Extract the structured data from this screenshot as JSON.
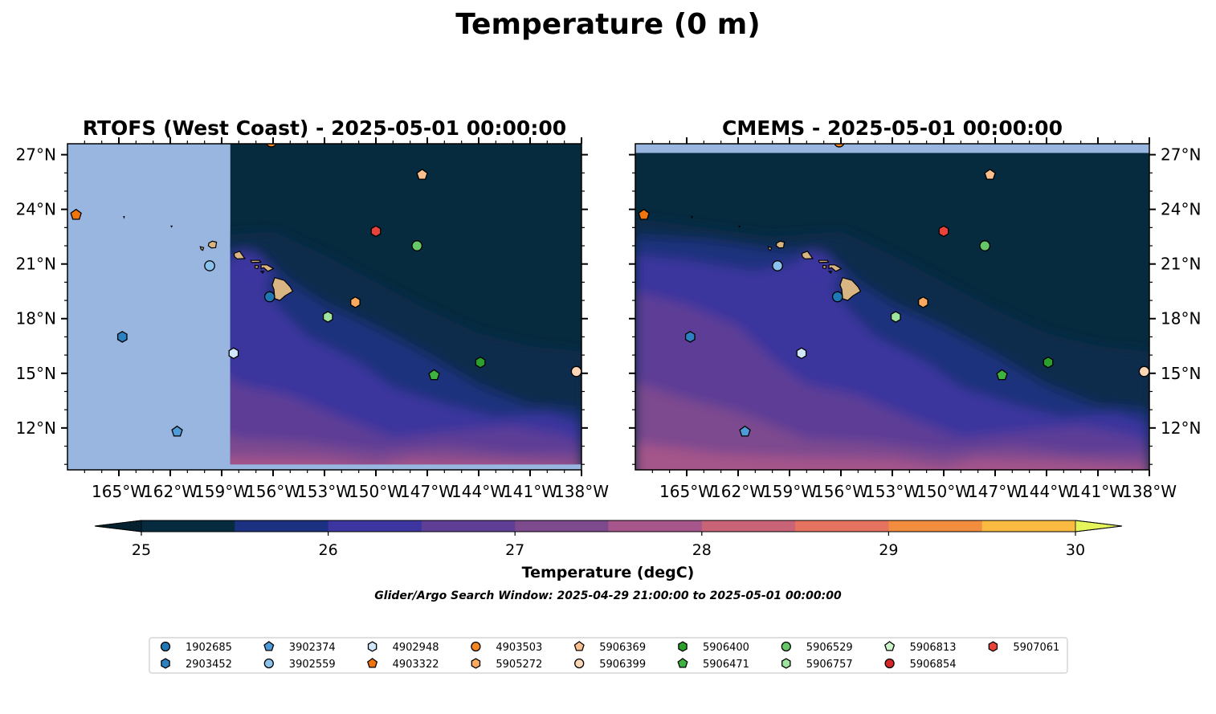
{
  "figure": {
    "title": "Temperature (0 m)",
    "subtitle": "Glider/Argo Search Window: 2025-04-29 21:00:00 to 2025-05-01 00:00:00"
  },
  "map_extent": {
    "lon_min": -168,
    "lon_max": -138,
    "lat_min": 9.7,
    "lat_max": 27.6
  },
  "panels": [
    {
      "id": "rtofs",
      "title": "RTOFS (West Coast) - 2025-05-01 00:00:00",
      "model_lon_min": -158.5,
      "model_lat_min": 10.0,
      "model_lat_max": 27.6,
      "axis_side": "left"
    },
    {
      "id": "cmems",
      "title": "CMEMS - 2025-05-01 00:00:00",
      "model_lon_min": -168,
      "model_lat_min": 9.7,
      "model_lat_max": 27.1,
      "axis_side": "right"
    }
  ],
  "axes": {
    "lon_ticks": [
      -165,
      -162,
      -159,
      -156,
      -153,
      -150,
      -147,
      -144,
      -141,
      -138
    ],
    "lon_tick_labels": [
      "165°W",
      "162°W",
      "159°W",
      "156°W",
      "153°W",
      "150°W",
      "147°W",
      "144°W",
      "141°W",
      "138°W"
    ],
    "lat_ticks": [
      12,
      15,
      18,
      21,
      24,
      27
    ],
    "lat_tick_labels": [
      "12°N",
      "15°N",
      "18°N",
      "21°N",
      "24°N",
      "27°N"
    ]
  },
  "colorbar": {
    "label": "Temperature (degC)",
    "min": 25,
    "max": 30,
    "step": 0.5,
    "tick_values": [
      25,
      26,
      27,
      28,
      29,
      30
    ],
    "tick_labels": [
      "25",
      "26",
      "27",
      "28",
      "29",
      "30"
    ],
    "colors": [
      "#062a3e",
      "#1c3181",
      "#3d36a0",
      "#5f3f96",
      "#7e4a8e",
      "#a6568a",
      "#c96378",
      "#e6735f",
      "#f28c3f",
      "#fbba41",
      "#f7dc41"
    ],
    "under_color": "#05212f",
    "over_color": "#e6f55a"
  },
  "colors": {
    "no_data": "#99b6e1",
    "land": "#d9b584",
    "temp_25": "#062a3e",
    "temp_25_5": "#0a2a4d",
    "temp_26": "#1c3181",
    "temp_26_5": "#3d36a0",
    "temp_27": "#5f3f96",
    "temp_27_5": "#7e4a8e",
    "temp_28": "#a6568a"
  },
  "floats": [
    {
      "id": "1902685",
      "marker": "circle",
      "color": "#1f77b4",
      "lon": -156.2,
      "lat": 19.2
    },
    {
      "id": "2903452",
      "marker": "hexagon",
      "color": "#2e81c0",
      "lon": -164.8,
      "lat": 17.0
    },
    {
      "id": "3902374",
      "marker": "pentagon",
      "color": "#4e9bd7",
      "lon": -161.6,
      "lat": 11.8
    },
    {
      "id": "3902559",
      "marker": "circle",
      "color": "#8cc3ec",
      "lon": -159.7,
      "lat": 20.9
    },
    {
      "id": "4902948",
      "marker": "hexagon",
      "color": "#cfe6fb",
      "lon": -158.3,
      "lat": 16.1
    },
    {
      "id": "4903503",
      "marker": "circle",
      "color": "#f58520",
      "lon": -156.1,
      "lat": 27.7
    },
    {
      "id": "4903322",
      "marker": "pentagon",
      "color": "#f0750e",
      "lon": -167.5,
      "lat": 23.7
    },
    {
      "id": "5905272",
      "marker": "hexagon",
      "color": "#fcaa60",
      "lon": -151.2,
      "lat": 18.9
    },
    {
      "id": "5906369",
      "marker": "pentagon",
      "color": "#fcc08e",
      "lon": -147.3,
      "lat": 25.9
    },
    {
      "id": "5906399",
      "marker": "circle",
      "color": "#fdd7b6",
      "lon": -138.3,
      "lat": 15.1
    },
    {
      "id": "5906400",
      "marker": "hexagon",
      "color": "#2ca02c",
      "lon": -143.9,
      "lat": 15.6
    },
    {
      "id": "5906471",
      "marker": "pentagon",
      "color": "#3fb33f",
      "lon": -146.6,
      "lat": 14.9
    },
    {
      "id": "5906529",
      "marker": "circle",
      "color": "#66c766",
      "lon": -147.6,
      "lat": 22.0
    },
    {
      "id": "5906757",
      "marker": "hexagon",
      "color": "#9ee49e",
      "lon": -152.8,
      "lat": 18.1
    },
    {
      "id": "5906813",
      "marker": "pentagon",
      "color": "#ccf5cc",
      "lon": -152.8,
      "lat": 18.1,
      "hide_in_map": true
    },
    {
      "id": "5906854",
      "marker": "circle",
      "color": "#d62728",
      "lon": -150.0,
      "lat": 22.8,
      "hide_in_map": true
    },
    {
      "id": "5907061",
      "marker": "hexagon",
      "color": "#e8423a",
      "lon": -150.0,
      "lat": 22.8
    }
  ],
  "legend": {
    "columns": [
      [
        "1902685",
        "2903452"
      ],
      [
        "3902374",
        "3902559"
      ],
      [
        "4902948",
        "4903322"
      ],
      [
        "4903503",
        "5905272"
      ],
      [
        "5906369",
        "5906399"
      ],
      [
        "5906400",
        "5906471"
      ],
      [
        "5906529",
        "5906757"
      ],
      [
        "5906813",
        "5906854"
      ],
      [
        "5907061"
      ]
    ]
  },
  "islands": [
    {
      "name": "Hawaii",
      "points": [
        [
          -155.9,
          20.25
        ],
        [
          -155.35,
          20.1
        ],
        [
          -155.0,
          19.75
        ],
        [
          -154.85,
          19.5
        ],
        [
          -155.3,
          19.25
        ],
        [
          -155.6,
          19.0
        ],
        [
          -155.9,
          19.1
        ],
        [
          -155.95,
          19.6
        ],
        [
          -156.05,
          19.85
        ]
      ]
    },
    {
      "name": "Maui",
      "points": [
        [
          -156.7,
          20.95
        ],
        [
          -156.35,
          20.95
        ],
        [
          -155.98,
          20.75
        ],
        [
          -156.3,
          20.6
        ],
        [
          -156.55,
          20.8
        ],
        [
          -156.7,
          20.75
        ]
      ]
    },
    {
      "name": "Molokai",
      "points": [
        [
          -157.3,
          21.2
        ],
        [
          -156.8,
          21.2
        ],
        [
          -156.72,
          21.1
        ],
        [
          -157.25,
          21.08
        ]
      ]
    },
    {
      "name": "Lanai",
      "points": [
        [
          -157.05,
          20.92
        ],
        [
          -156.85,
          20.9
        ],
        [
          -156.9,
          20.75
        ],
        [
          -157.05,
          20.78
        ]
      ]
    },
    {
      "name": "Kahoolawe",
      "points": [
        [
          -156.7,
          20.6
        ],
        [
          -156.55,
          20.6
        ],
        [
          -156.6,
          20.5
        ]
      ]
    },
    {
      "name": "Oahu",
      "points": [
        [
          -158.28,
          21.58
        ],
        [
          -157.95,
          21.7
        ],
        [
          -157.65,
          21.3
        ],
        [
          -158.1,
          21.28
        ],
        [
          -158.25,
          21.4
        ]
      ]
    },
    {
      "name": "Kauai",
      "points": [
        [
          -159.75,
          22.15
        ],
        [
          -159.55,
          22.25
        ],
        [
          -159.3,
          22.2
        ],
        [
          -159.35,
          21.9
        ],
        [
          -159.6,
          21.88
        ],
        [
          -159.78,
          22.0
        ]
      ]
    },
    {
      "name": "Niihau",
      "points": [
        [
          -160.25,
          21.95
        ],
        [
          -160.05,
          21.9
        ],
        [
          -160.1,
          21.75
        ],
        [
          -160.2,
          21.8
        ]
      ]
    },
    {
      "name": "Nihoa",
      "points": [
        [
          -161.95,
          23.08
        ],
        [
          -161.9,
          23.08
        ],
        [
          -161.92,
          23.04
        ]
      ]
    },
    {
      "name": "Necker",
      "points": [
        [
          -164.72,
          23.6
        ],
        [
          -164.68,
          23.6
        ],
        [
          -164.7,
          23.55
        ]
      ]
    }
  ]
}
